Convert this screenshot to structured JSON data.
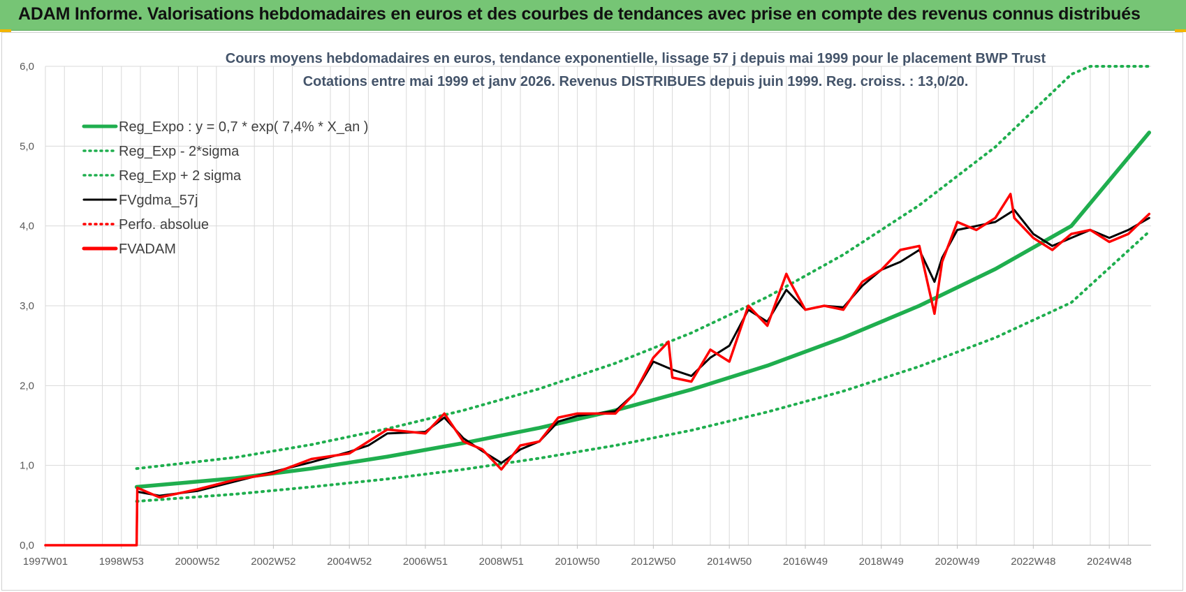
{
  "header": {
    "title": "ADAM Informe. Valorisations hebdomadaires en euros et des courbes de tendances avec prise en compte des revenus connus distribués"
  },
  "colors": {
    "banner": "#76c575",
    "trend": "#1fae4e",
    "band": "#1fae4e",
    "gdma": "#000000",
    "fvadam": "#ff0000",
    "perfo": "#ff0000"
  },
  "chart_data": {
    "type": "line",
    "title_line1": "Cours moyens hebdomadaires en euros, tendance exponentielle, lissage 57 j depuis mai 1999 pour le placement BWP Trust",
    "title_line2": "Cotations entre mai 1999 et janv 2026. Revenus DISTRIBUES depuis juin 1999. Reg. croiss. : 13,0/20.",
    "x_range": [
      1997.0,
      2026.1
    ],
    "ylim": [
      0,
      6
    ],
    "y_ticks": [
      "0,0",
      "1,0",
      "2,0",
      "3,0",
      "4,0",
      "5,0",
      "6,0"
    ],
    "x_ticks": [
      {
        "label": "1997W01",
        "x": 1997.0
      },
      {
        "label": "1998W53",
        "x": 1999.0
      },
      {
        "label": "2000W52",
        "x": 2001.0
      },
      {
        "label": "2002W52",
        "x": 2003.0
      },
      {
        "label": "2004W52",
        "x": 2005.0
      },
      {
        "label": "2006W51",
        "x": 2007.0
      },
      {
        "label": "2008W51",
        "x": 2009.0
      },
      {
        "label": "2010W50",
        "x": 2011.0
      },
      {
        "label": "2012W50",
        "x": 2013.0
      },
      {
        "label": "2014W50",
        "x": 2015.0
      },
      {
        "label": "2016W49",
        "x": 2017.0
      },
      {
        "label": "2018W49",
        "x": 2019.0
      },
      {
        "label": "2020W49",
        "x": 2021.0
      },
      {
        "label": "2022W48",
        "x": 2023.0
      },
      {
        "label": "2024W48",
        "x": 2025.0
      }
    ],
    "grid": true,
    "legend_position": "top-left",
    "legend": [
      {
        "key": "trend",
        "label": "Reg_Expo : y = 0,7 * exp( 7,4% *  X_an )",
        "style": "solid-thick",
        "color": "#1fae4e"
      },
      {
        "key": "lower",
        "label": "Reg_Exp - 2*sigma",
        "style": "dotted",
        "color": "#1fae4e"
      },
      {
        "key": "upper",
        "label": "Reg_Exp + 2 sigma",
        "style": "dotted",
        "color": "#1fae4e"
      },
      {
        "key": "gdma",
        "label": "FVgdma_57j",
        "style": "solid",
        "color": "#000000"
      },
      {
        "key": "perfo",
        "label": "Perfo. absolue",
        "style": "dotted",
        "color": "#ff0000"
      },
      {
        "key": "fvadam",
        "label": "FVADAM",
        "style": "solid-thick",
        "color": "#ff0000"
      }
    ],
    "series": [
      {
        "name": "Reg_Expo",
        "x": [
          1999.4,
          2002,
          2004,
          2006,
          2008,
          2010,
          2012,
          2014,
          2016,
          2018,
          2020,
          2022,
          2024,
          2026.05
        ],
        "y": [
          0.73,
          0.84,
          0.96,
          1.11,
          1.28,
          1.47,
          1.69,
          1.95,
          2.25,
          2.6,
          3.0,
          3.46,
          4.0,
          5.17
        ]
      },
      {
        "name": "Reg_Exp + 2 sigma",
        "x": [
          1999.4,
          2002,
          2004,
          2006,
          2008,
          2010,
          2012,
          2014,
          2016,
          2018,
          2020,
          2022,
          2024,
          2024.5,
          2026.05
        ],
        "y": [
          0.96,
          1.1,
          1.26,
          1.46,
          1.69,
          1.96,
          2.28,
          2.66,
          3.11,
          3.64,
          4.26,
          4.99,
          5.9,
          6.0,
          6.0
        ]
      },
      {
        "name": "Reg_Exp - 2*sigma",
        "x": [
          1999.4,
          2002,
          2004,
          2006,
          2008,
          2010,
          2012,
          2014,
          2016,
          2018,
          2020,
          2022,
          2024,
          2026.05
        ],
        "y": [
          0.55,
          0.64,
          0.73,
          0.83,
          0.95,
          1.09,
          1.25,
          1.44,
          1.67,
          1.93,
          2.24,
          2.6,
          3.04,
          3.93
        ]
      },
      {
        "name": "FVgdma_57j",
        "x": [
          1997.0,
          1999.4,
          1999.42,
          2000,
          2001,
          2002,
          2003,
          2004,
          2005,
          2005.5,
          2006,
          2007,
          2007.5,
          2008,
          2008.5,
          2009,
          2009.5,
          2010,
          2010.5,
          2011,
          2012,
          2012.5,
          2013,
          2013.5,
          2014,
          2014.5,
          2015,
          2015.5,
          2016,
          2016.5,
          2017,
          2017.5,
          2018,
          2018.5,
          2019,
          2019.5,
          2020,
          2020.4,
          2020.6,
          2021,
          2021.5,
          2022,
          2022.5,
          2023,
          2023.5,
          2024,
          2024.5,
          2025,
          2025.5,
          2026.05
        ],
        "y": [
          0.0,
          0.0,
          0.67,
          0.62,
          0.68,
          0.8,
          0.92,
          1.04,
          1.17,
          1.25,
          1.4,
          1.42,
          1.6,
          1.34,
          1.18,
          1.03,
          1.2,
          1.3,
          1.55,
          1.62,
          1.68,
          1.9,
          2.3,
          2.2,
          2.12,
          2.35,
          2.5,
          2.95,
          2.8,
          3.2,
          2.95,
          3.0,
          2.98,
          3.25,
          3.45,
          3.55,
          3.7,
          3.3,
          3.6,
          3.95,
          4.0,
          4.05,
          4.2,
          3.9,
          3.75,
          3.85,
          3.95,
          3.85,
          3.95,
          4.1
        ]
      },
      {
        "name": "FVADAM",
        "x": [
          1997.0,
          1999.4,
          1999.42,
          2000,
          2001,
          2002,
          2003,
          2004,
          2005,
          2005.5,
          2006,
          2007,
          2007.5,
          2008,
          2008.5,
          2009,
          2009.5,
          2010,
          2010.5,
          2011,
          2012,
          2012.5,
          2013,
          2013.4,
          2013.5,
          2014,
          2014.5,
          2015,
          2015.5,
          2016,
          2016.5,
          2016.6,
          2017,
          2017.5,
          2018,
          2018.5,
          2019,
          2019.5,
          2020,
          2020.4,
          2020.6,
          2021,
          2021.5,
          2022,
          2022.4,
          2022.5,
          2023,
          2023.5,
          2024,
          2024.5,
          2025,
          2025.5,
          2026.05
        ],
        "y": [
          0.0,
          0.0,
          0.72,
          0.6,
          0.7,
          0.82,
          0.9,
          1.08,
          1.15,
          1.3,
          1.45,
          1.4,
          1.65,
          1.3,
          1.2,
          0.95,
          1.25,
          1.3,
          1.6,
          1.65,
          1.65,
          1.9,
          2.35,
          2.55,
          2.1,
          2.05,
          2.45,
          2.3,
          3.0,
          2.75,
          3.4,
          3.3,
          2.95,
          3.0,
          2.95,
          3.3,
          3.45,
          3.7,
          3.75,
          2.9,
          3.55,
          4.05,
          3.95,
          4.1,
          4.4,
          4.1,
          3.85,
          3.7,
          3.9,
          3.95,
          3.8,
          3.9,
          4.15
        ]
      },
      {
        "name": "Perfo. absolue",
        "x": [
          1999.42,
          2000,
          2001,
          2002,
          2003,
          2004,
          2005,
          2005.5,
          2006,
          2007,
          2007.5,
          2008,
          2008.5,
          2009,
          2009.5,
          2010,
          2010.5,
          2011,
          2012,
          2012.5,
          2013,
          2013.4,
          2013.5,
          2014,
          2014.5,
          2015,
          2015.5,
          2016,
          2016.5,
          2016.6,
          2017,
          2017.5,
          2018,
          2018.5,
          2019,
          2019.5,
          2020,
          2020.4,
          2020.6,
          2021,
          2021.5,
          2022,
          2022.4,
          2022.5,
          2023,
          2023.5,
          2024,
          2024.5,
          2025,
          2025.5,
          2026.05
        ],
        "y": [
          0.72,
          0.6,
          0.7,
          0.82,
          0.9,
          1.08,
          1.15,
          1.3,
          1.45,
          1.4,
          1.65,
          1.3,
          1.2,
          0.95,
          1.25,
          1.3,
          1.6,
          1.65,
          1.65,
          1.9,
          2.35,
          2.55,
          2.1,
          2.05,
          2.45,
          2.3,
          3.0,
          2.75,
          3.4,
          3.3,
          2.95,
          3.0,
          2.95,
          3.3,
          3.45,
          3.7,
          3.75,
          2.9,
          3.55,
          4.05,
          3.95,
          4.1,
          4.4,
          4.1,
          3.85,
          3.7,
          3.9,
          3.95,
          3.8,
          3.9,
          4.15
        ]
      }
    ]
  }
}
